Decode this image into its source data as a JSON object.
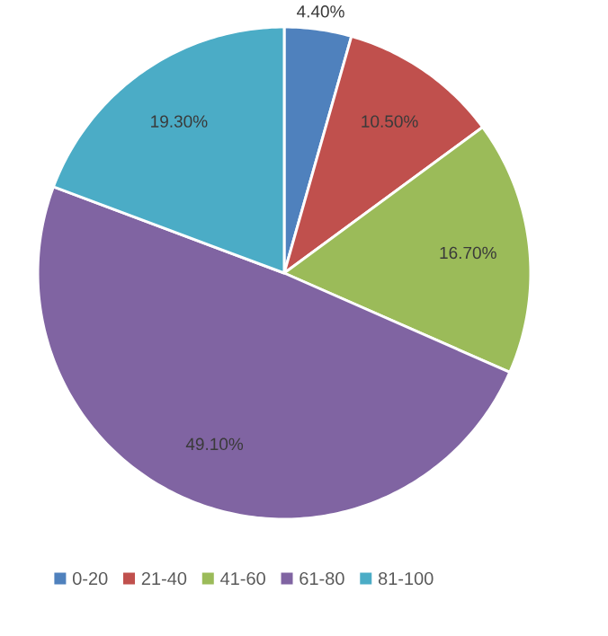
{
  "chart_data": {
    "type": "pie",
    "categories": [
      "0-20",
      "21-40",
      "41-60",
      "61-80",
      "81-100"
    ],
    "values": [
      4.4,
      10.5,
      16.7,
      49.1,
      19.3
    ],
    "value_labels": [
      "4.40%",
      "10.50%",
      "16.70%",
      "49.10%",
      "19.30%"
    ],
    "colors": [
      "#4f81bd",
      "#c0504d",
      "#9bbb59",
      "#8064a2",
      "#4bacc6"
    ],
    "legend": "bottom"
  }
}
